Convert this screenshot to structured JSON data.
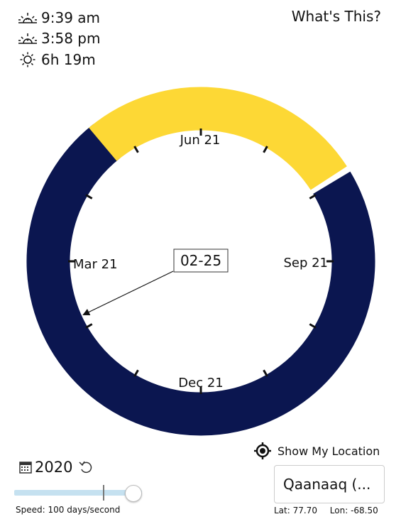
{
  "sun": {
    "sunrise": "9:39 am",
    "sunset": "3:58 pm",
    "day_length": "6h 19m"
  },
  "header": {
    "help_link": "What's This?"
  },
  "dial": {
    "months": {
      "jun": "Jun 21",
      "sep": "Sep 21",
      "dec": "Dec 21",
      "mar": "Mar 21"
    },
    "current_date": "02-25",
    "colors": {
      "night": "#0b1650",
      "day": "#fdd835"
    }
  },
  "controls": {
    "year": "2020",
    "speed_label": "Speed: 100 days/second",
    "show_location": "Show My Location"
  },
  "location": {
    "name": "Qaanaaq (...",
    "lat": "Lat: 77.70",
    "lon": "Lon: -68.50"
  }
}
